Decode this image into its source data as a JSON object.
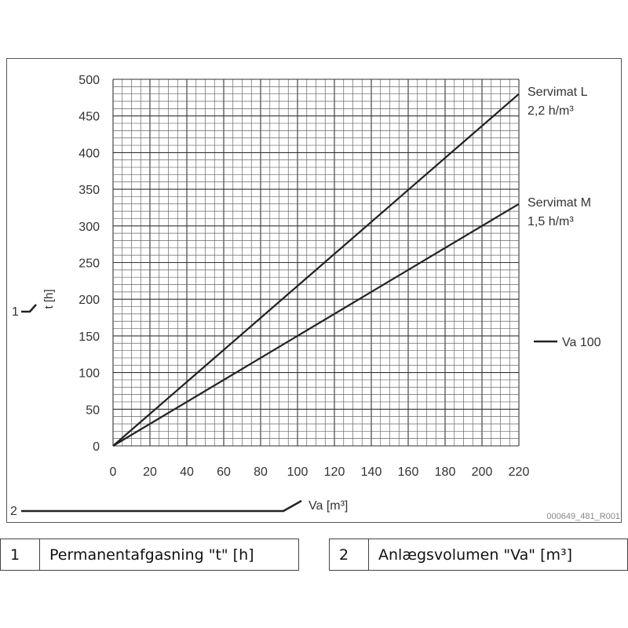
{
  "chart_data": {
    "type": "line",
    "xlabel": "Va [m³]",
    "ylabel": "t [h]",
    "xlim": [
      0,
      220
    ],
    "ylim": [
      0,
      500
    ],
    "xticks": [
      0,
      20,
      40,
      60,
      80,
      100,
      120,
      140,
      160,
      180,
      200,
      220
    ],
    "yticks": [
      0,
      50,
      100,
      150,
      200,
      250,
      300,
      350,
      400,
      450,
      500
    ],
    "grid": true,
    "series": [
      {
        "name": "Servimat L",
        "rate": "2,2 h/m³",
        "x": [
          0,
          220
        ],
        "y": [
          0,
          480
        ]
      },
      {
        "name": "Servimat M",
        "rate": "1,5 h/m³",
        "x": [
          0,
          220
        ],
        "y": [
          0,
          330
        ]
      }
    ],
    "annotations": {
      "va_label": "Va 100",
      "callout_1": "1",
      "callout_2": "2",
      "figure_code": "000649_481_R001"
    }
  },
  "legend": [
    {
      "number": "1",
      "text": "Permanentafgasning \"t\" [h]"
    },
    {
      "number": "2",
      "text": "Anlægsvolumen \"Va\" [m³]"
    }
  ]
}
